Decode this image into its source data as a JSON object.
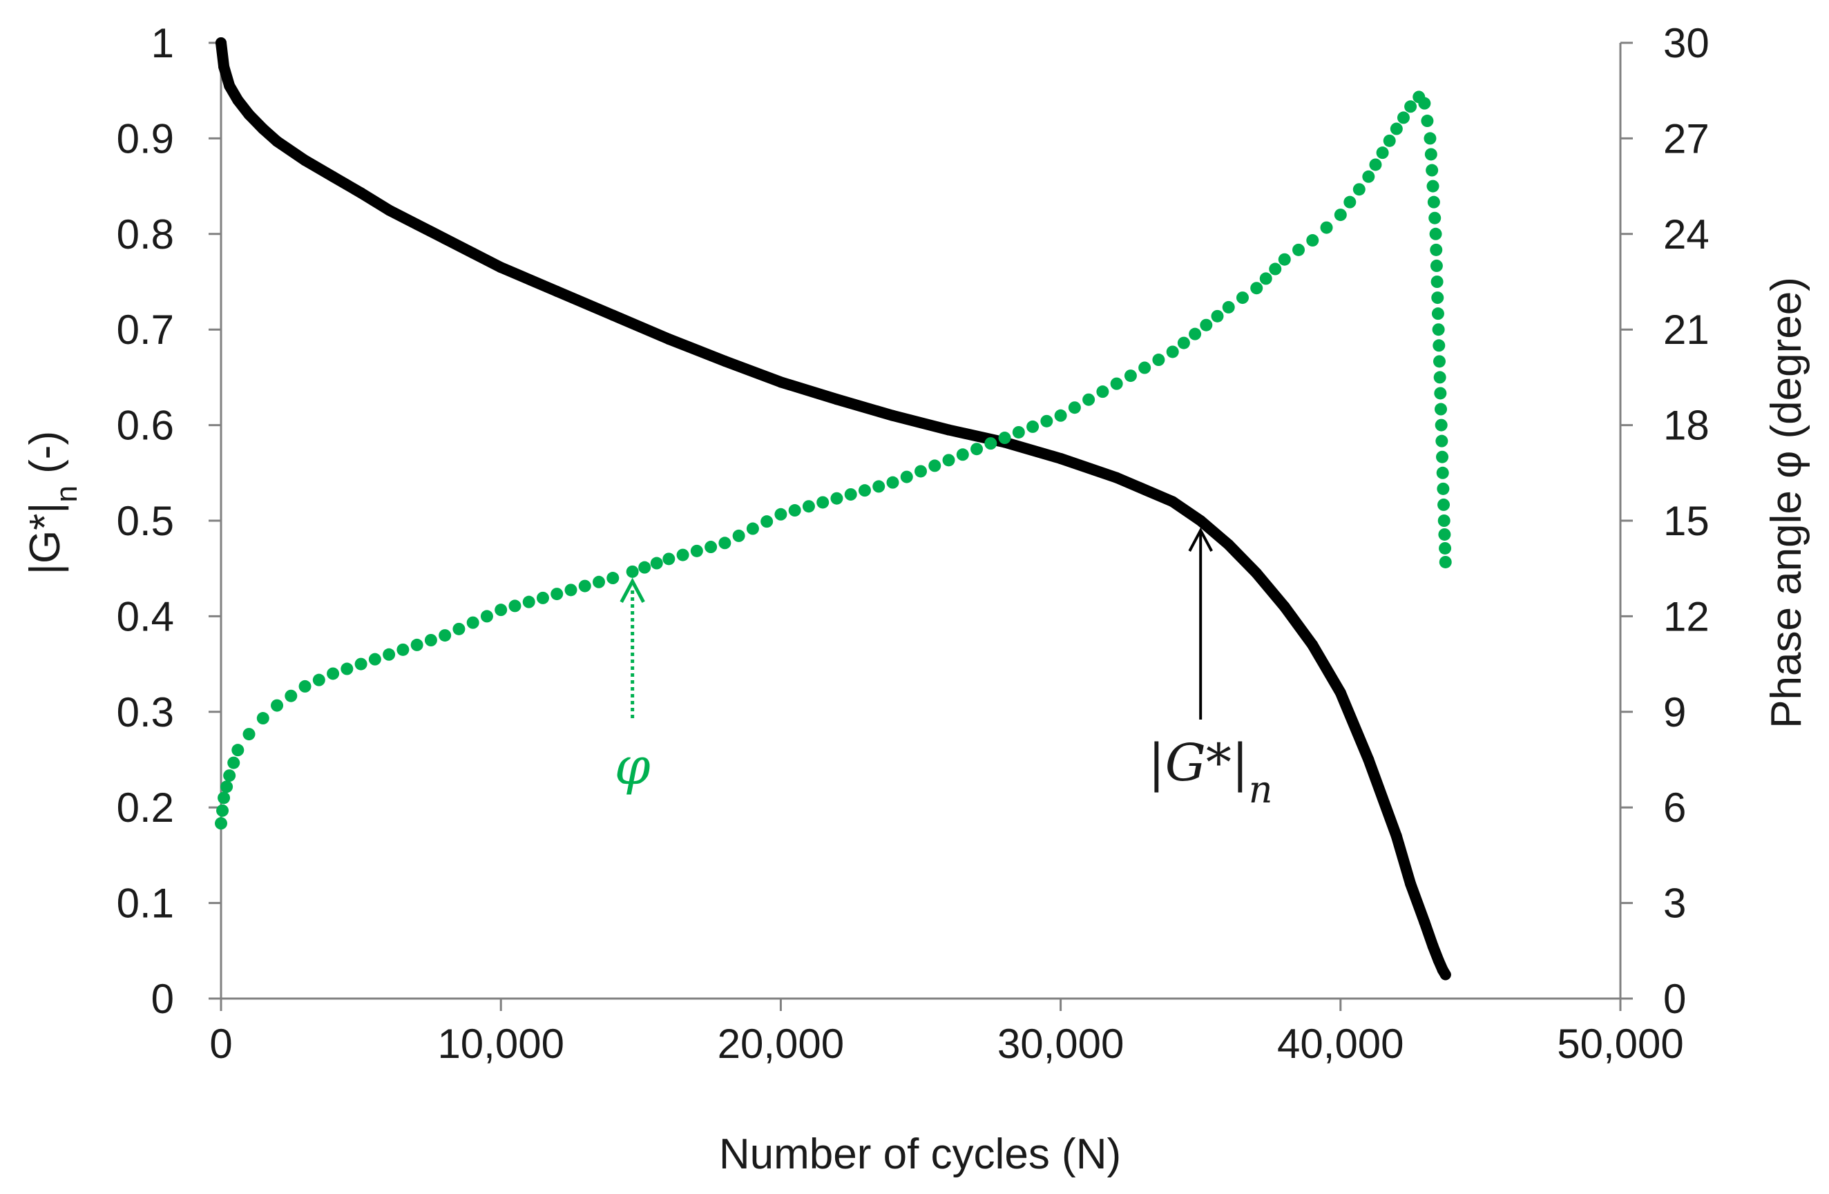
{
  "chart_data": {
    "type": "scatter",
    "title": "",
    "xlabel": "Number of cycles (N)",
    "ylabel_left": "|G*|n (-)",
    "ylabel_left_main": "|G*|",
    "ylabel_left_sub": "n",
    "ylabel_left_suffix": " (-)",
    "ylabel_right": "Phase angle φ (degree)",
    "xlim": [
      0,
      50000
    ],
    "ylim_left": [
      0,
      1
    ],
    "ylim_right": [
      0,
      30
    ],
    "x_ticks": [
      0,
      10000,
      20000,
      30000,
      40000,
      50000
    ],
    "x_tick_labels": [
      "0",
      "10,000",
      "20,000",
      "30,000",
      "40,000",
      "50,000"
    ],
    "y_left_ticks": [
      0,
      0.1,
      0.2,
      0.3,
      0.4,
      0.5,
      0.6,
      0.7,
      0.8,
      0.9,
      1
    ],
    "y_left_tick_labels": [
      "0",
      "0.1",
      "0.2",
      "0.3",
      "0.4",
      "0.5",
      "0.6",
      "0.7",
      "0.8",
      "0.9",
      "1"
    ],
    "y_right_ticks": [
      0,
      3,
      6,
      9,
      12,
      15,
      18,
      21,
      24,
      27,
      30
    ],
    "y_right_tick_labels": [
      "0",
      "3",
      "6",
      "9",
      "12",
      "15",
      "18",
      "21",
      "24",
      "27",
      "30"
    ],
    "series": [
      {
        "name": "|G*|n",
        "axis": "left",
        "color": "#000000",
        "style": "thick-line",
        "x": [
          0,
          100,
          300,
          600,
          1000,
          1500,
          2000,
          3000,
          4000,
          5000,
          6000,
          7000,
          8000,
          9000,
          10000,
          12000,
          14000,
          16000,
          18000,
          20000,
          22000,
          24000,
          26000,
          28000,
          30000,
          32000,
          34000,
          35000,
          36000,
          37000,
          38000,
          39000,
          40000,
          41000,
          42000,
          42500,
          43000,
          43300,
          43500,
          43650,
          43750
        ],
        "values": [
          1.0,
          0.975,
          0.955,
          0.94,
          0.925,
          0.91,
          0.897,
          0.877,
          0.86,
          0.843,
          0.825,
          0.81,
          0.795,
          0.78,
          0.765,
          0.74,
          0.715,
          0.69,
          0.667,
          0.645,
          0.627,
          0.61,
          0.595,
          0.582,
          0.565,
          0.545,
          0.52,
          0.5,
          0.475,
          0.445,
          0.41,
          0.37,
          0.32,
          0.25,
          0.17,
          0.12,
          0.08,
          0.055,
          0.04,
          0.03,
          0.025
        ]
      },
      {
        "name": "φ",
        "axis": "right",
        "color": "#00b050",
        "style": "dots",
        "x": [
          0,
          100,
          300,
          600,
          1000,
          1500,
          2000,
          3000,
          4000,
          5000,
          6000,
          7000,
          8000,
          9000,
          10000,
          12000,
          14000,
          14700,
          16000,
          18000,
          20000,
          22000,
          24000,
          26000,
          28000,
          30000,
          32000,
          34000,
          36000,
          37000,
          38000,
          39000,
          40000,
          41000,
          42000,
          42500,
          42800,
          43000,
          43200,
          43400,
          43500,
          43600,
          43700,
          43750
        ],
        "values": [
          5.5,
          6.3,
          7.0,
          7.8,
          8.3,
          8.8,
          9.2,
          9.8,
          10.2,
          10.5,
          10.8,
          11.1,
          11.4,
          11.8,
          12.2,
          12.7,
          13.2,
          13.4,
          13.8,
          14.3,
          15.2,
          15.7,
          16.2,
          16.9,
          17.6,
          18.3,
          19.3,
          20.3,
          21.7,
          22.3,
          23.2,
          23.8,
          24.6,
          25.8,
          27.3,
          28.0,
          28.3,
          28.1,
          27.0,
          24.0,
          21.0,
          18.0,
          15.0,
          13.7
        ]
      }
    ],
    "annotations": [
      {
        "text": "φ",
        "target": "phase angle curve",
        "x": 14700,
        "y_right": 13.4,
        "arrow": "dotted",
        "color": "#00b050"
      },
      {
        "text": "|G*|n",
        "main": "|G*|",
        "sub": "n",
        "target": "norm modulus curve",
        "x": 35000,
        "y_left": 0.5,
        "arrow": "solid",
        "color": "#000000"
      }
    ]
  }
}
